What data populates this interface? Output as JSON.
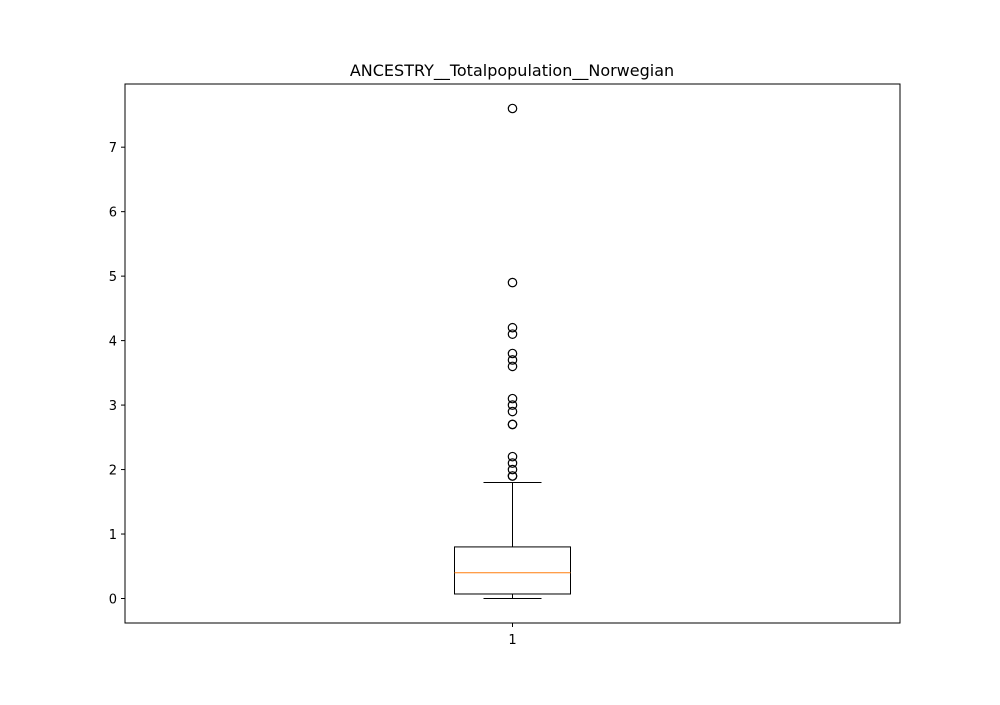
{
  "chart_data": {
    "type": "box",
    "title": "ANCESTRY__Totalpopulation__Norwegian",
    "xlabel": "",
    "ylabel": "",
    "categories": [
      "1"
    ],
    "ylim": [
      -0.38,
      7.98
    ],
    "yticks": [
      0,
      1,
      2,
      3,
      4,
      5,
      6,
      7
    ],
    "grid": false,
    "box": {
      "whisker_low": 0.0,
      "q1": 0.07,
      "median": 0.4,
      "q3": 0.8,
      "whisker_high": 1.8,
      "outliers": [
        7.6,
        4.9,
        4.2,
        4.1,
        3.8,
        3.7,
        3.6,
        3.1,
        3.0,
        2.9,
        2.7,
        2.7,
        2.2,
        2.1,
        2.0,
        1.9,
        1.9
      ]
    },
    "colors": {
      "box": "#000000",
      "median": "#ff7f0e",
      "outlier": "#000000"
    }
  }
}
